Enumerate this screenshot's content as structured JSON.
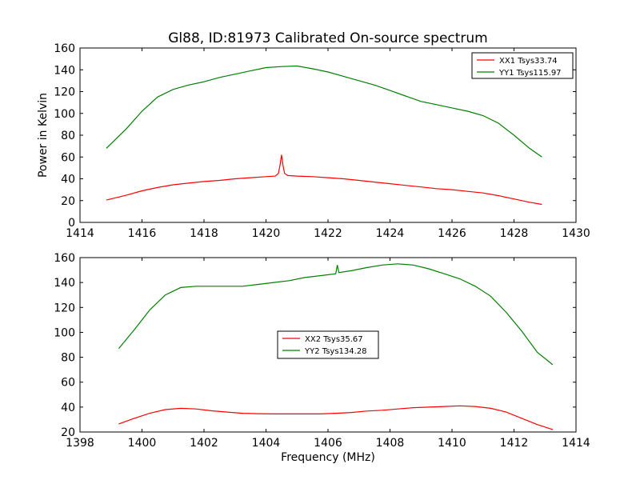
{
  "chart_data": [
    {
      "type": "line",
      "title": "Gl88, ID:81973 Calibrated On-source spectrum",
      "xlabel": "",
      "ylabel": "Power in Kelvin",
      "xlim": [
        1414,
        1430
      ],
      "ylim": [
        0,
        160
      ],
      "xticks": [
        "1414",
        "1416",
        "1418",
        "1420",
        "1422",
        "1424",
        "1426",
        "1428",
        "1430"
      ],
      "yticks": [
        "0",
        "20",
        "40",
        "60",
        "80",
        "100",
        "120",
        "140",
        "160"
      ],
      "legend_position": "upper right",
      "series": [
        {
          "name": "XX1 Tsys33.74",
          "color": "#ff0000",
          "x": [
            1414.85,
            1415.5,
            1416.0,
            1416.5,
            1417.0,
            1417.5,
            1418.0,
            1418.5,
            1419.0,
            1419.5,
            1420.0,
            1420.3,
            1420.4,
            1420.45,
            1420.5,
            1420.55,
            1420.6,
            1420.7,
            1421.0,
            1421.5,
            1422.0,
            1422.5,
            1423.0,
            1423.5,
            1424.0,
            1424.5,
            1425.0,
            1425.5,
            1426.0,
            1426.5,
            1427.0,
            1427.5,
            1428.0,
            1428.5,
            1428.9
          ],
          "y": [
            20.5,
            25,
            29,
            32,
            34.5,
            36,
            37.5,
            38.5,
            40,
            41,
            42,
            42.5,
            45,
            52,
            62,
            52,
            45,
            43,
            42.5,
            42,
            41,
            40,
            38.5,
            37,
            35.5,
            34,
            32.5,
            31,
            30,
            28.5,
            27,
            24.5,
            21.5,
            18.5,
            16.5
          ]
        },
        {
          "name": "YY1 Tsys115.97",
          "color": "#008000",
          "x": [
            1414.85,
            1415.5,
            1416.0,
            1416.5,
            1417.0,
            1417.5,
            1418.0,
            1418.5,
            1419.0,
            1419.5,
            1420.0,
            1420.5,
            1421.0,
            1421.5,
            1422.0,
            1422.5,
            1423.0,
            1423.5,
            1424.0,
            1424.5,
            1425.0,
            1425.5,
            1426.0,
            1426.5,
            1427.0,
            1427.5,
            1428.0,
            1428.5,
            1428.9
          ],
          "y": [
            68,
            86,
            102,
            115,
            122,
            126,
            129,
            133,
            136,
            139,
            142,
            143,
            143.5,
            141,
            138,
            134,
            130,
            126,
            121,
            116,
            111,
            108,
            105,
            102,
            98,
            91,
            80,
            68,
            60
          ]
        }
      ]
    },
    {
      "type": "line",
      "title": "",
      "xlabel": "Frequency (MHz)",
      "ylabel": "",
      "xlim": [
        1398,
        1414
      ],
      "ylim": [
        20,
        160
      ],
      "xticks": [
        "1398",
        "1400",
        "1402",
        "1404",
        "1406",
        "1408",
        "1410",
        "1412",
        "1414"
      ],
      "yticks": [
        "20",
        "40",
        "60",
        "80",
        "100",
        "120",
        "140",
        "160"
      ],
      "legend_position": "center",
      "series": [
        {
          "name": "XX2 Tsys35.67",
          "color": "#ff0000",
          "x": [
            1399.25,
            1399.75,
            1400.25,
            1400.75,
            1401.25,
            1401.75,
            1402.25,
            1402.75,
            1403.25,
            1403.75,
            1404.25,
            1404.75,
            1405.25,
            1405.75,
            1406.25,
            1406.75,
            1407.25,
            1407.75,
            1408.25,
            1408.75,
            1409.25,
            1409.75,
            1410.25,
            1410.75,
            1411.25,
            1411.75,
            1412.25,
            1412.75,
            1413.25
          ],
          "y": [
            26.5,
            31,
            35,
            38,
            39,
            38.5,
            37,
            36,
            35,
            34.7,
            34.5,
            34.5,
            34.5,
            34.5,
            35,
            35.7,
            36.8,
            37.5,
            38.5,
            39.5,
            40,
            40.5,
            41,
            40.5,
            39,
            36,
            31,
            26,
            22
          ]
        },
        {
          "name": "YY2 Tsys134.28",
          "color": "#008000",
          "x": [
            1399.25,
            1399.75,
            1400.25,
            1400.75,
            1401.25,
            1401.75,
            1402.25,
            1402.75,
            1403.25,
            1403.75,
            1404.25,
            1404.75,
            1405.25,
            1405.75,
            1406.25,
            1406.3,
            1406.35,
            1406.75,
            1407.25,
            1407.75,
            1408.25,
            1408.75,
            1409.25,
            1409.75,
            1410.25,
            1410.75,
            1411.25,
            1411.75,
            1412.25,
            1412.75,
            1413.25
          ],
          "y": [
            87,
            102,
            118,
            130,
            136,
            137,
            137,
            137,
            137,
            138.5,
            140,
            141.5,
            144,
            145.5,
            147,
            154,
            148,
            149.5,
            152,
            154,
            155,
            154,
            151,
            147,
            143,
            137,
            129,
            116,
            101,
            84,
            74
          ]
        }
      ]
    }
  ]
}
